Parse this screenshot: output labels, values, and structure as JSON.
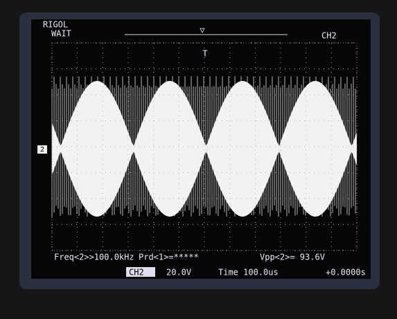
{
  "header": {
    "brand": "RIGOL",
    "status": "WAIT",
    "trigger_source": "CH2"
  },
  "measurements": {
    "freq": "Freq<2>>100.0kHz",
    "period": "Prd<1>=*****",
    "vpp": "Vpp<2>= 93.6V"
  },
  "status_bar": {
    "channel": "CH2",
    "scale": "20.0V",
    "time": "Time 100.0us",
    "offset": "+0.0000s"
  },
  "marker": "2"
}
